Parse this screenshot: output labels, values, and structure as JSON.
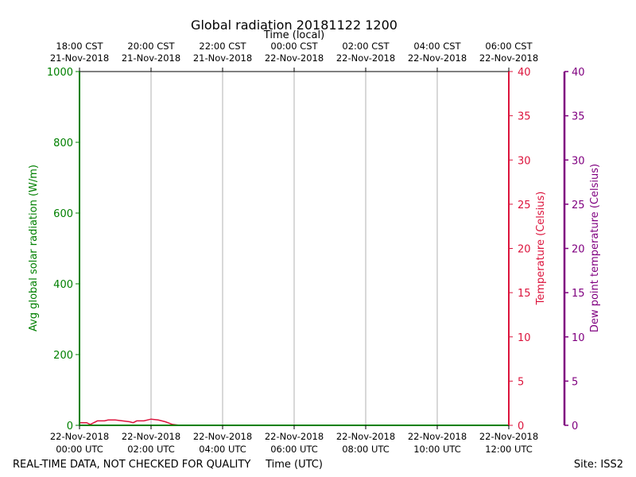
{
  "chart_data": {
    "type": "line",
    "title": "Global radiation 20181122 1200",
    "x_top_label": "Time (local)",
    "x_bottom_label": "Time (UTC)",
    "footer_left": "REAL-TIME DATA, NOT CHECKED FOR QUALITY",
    "footer_right": "Site: ISS2",
    "x_top_ticks": [
      {
        "l1": "18:00 CST",
        "l2": "21-Nov-2018"
      },
      {
        "l1": "20:00 CST",
        "l2": "21-Nov-2018"
      },
      {
        "l1": "22:00 CST",
        "l2": "21-Nov-2018"
      },
      {
        "l1": "00:00 CST",
        "l2": "22-Nov-2018"
      },
      {
        "l1": "02:00 CST",
        "l2": "22-Nov-2018"
      },
      {
        "l1": "04:00 CST",
        "l2": "22-Nov-2018"
      },
      {
        "l1": "06:00 CST",
        "l2": "22-Nov-2018"
      }
    ],
    "x_bottom_ticks": [
      {
        "l1": "22-Nov-2018",
        "l2": "00:00 UTC"
      },
      {
        "l1": "22-Nov-2018",
        "l2": "02:00 UTC"
      },
      {
        "l1": "22-Nov-2018",
        "l2": "04:00 UTC"
      },
      {
        "l1": "22-Nov-2018",
        "l2": "06:00 UTC"
      },
      {
        "l1": "22-Nov-2018",
        "l2": "08:00 UTC"
      },
      {
        "l1": "22-Nov-2018",
        "l2": "10:00 UTC"
      },
      {
        "l1": "22-Nov-2018",
        "l2": "12:00 UTC"
      }
    ],
    "xlim_hours_utc": [
      0,
      12
    ],
    "grid": "vertical",
    "axes": {
      "radiation": {
        "label": "Avg global solar radiation (W/m)",
        "ylim": [
          0,
          1000
        ],
        "ticks": [
          0,
          200,
          400,
          600,
          800,
          1000
        ],
        "color": "#008000"
      },
      "temperature": {
        "label": "Temperature (Celsius)",
        "ylim": [
          0,
          40
        ],
        "ticks": [
          0,
          5,
          10,
          15,
          20,
          25,
          30,
          35,
          40
        ],
        "color": "#dc143c"
      },
      "dewpoint": {
        "label": "Dew point temperature (Celsius)",
        "ylim": [
          0,
          40
        ],
        "ticks": [
          0,
          5,
          10,
          15,
          20,
          25,
          30,
          35,
          40
        ],
        "color": "#800080"
      }
    },
    "series": [
      {
        "axis": "temperature",
        "color": "#dc143c",
        "x_hours_utc": [
          0,
          0.1,
          0.2,
          0.3,
          0.4,
          0.5,
          0.6,
          0.7,
          0.8,
          1.0,
          1.2,
          1.4,
          1.5,
          1.6,
          1.8,
          2.0,
          2.2,
          2.4,
          2.6,
          2.8
        ],
        "values": [
          0.3,
          0.3,
          0.3,
          0.1,
          0.3,
          0.5,
          0.5,
          0.5,
          0.6,
          0.6,
          0.5,
          0.4,
          0.3,
          0.5,
          0.5,
          0.7,
          0.6,
          0.4,
          0.1,
          0.0
        ]
      },
      {
        "axis": "radiation",
        "color": "#008000",
        "x_hours_utc": [
          0,
          12
        ],
        "values": [
          0,
          0
        ]
      }
    ]
  }
}
